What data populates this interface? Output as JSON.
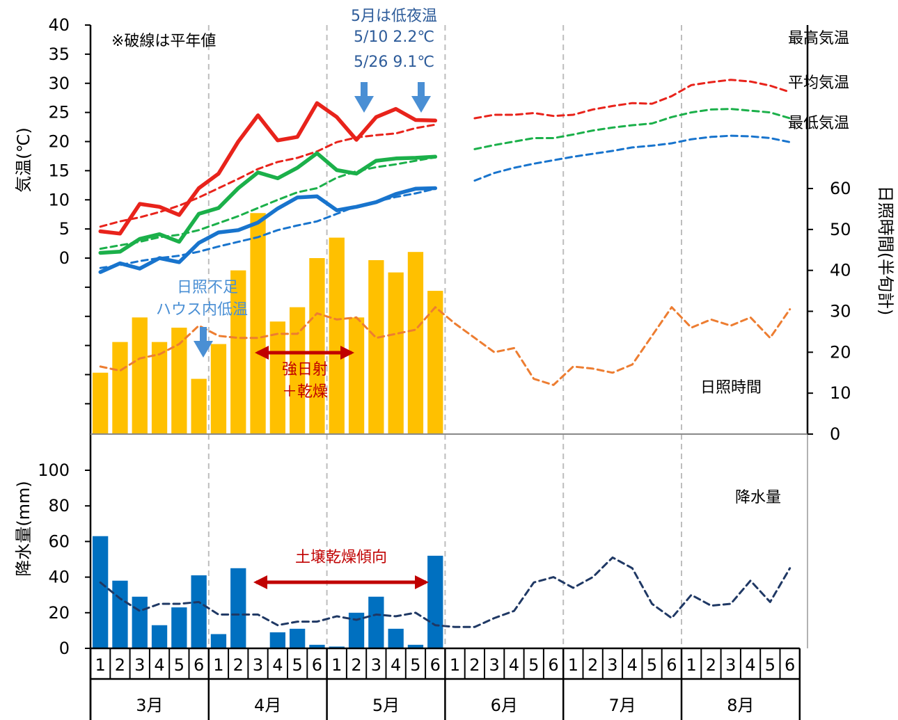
{
  "chart_data": [
    {
      "type": "line",
      "panel": "temperature",
      "ylabel": "気温(℃)",
      "ylim": [
        0,
        40
      ],
      "y_ticks": [
        40,
        35,
        30,
        25,
        20,
        15,
        10,
        5,
        0
      ],
      "x_periods": 36,
      "series": [
        {
          "name": "最高気温",
          "color": "#e8231b",
          "style": "solid",
          "values": [
            4.6,
            4.2,
            9.3,
            8.8,
            7.4,
            12.0,
            14.5,
            20.0,
            24.5,
            20.2,
            20.8,
            26.6,
            24.2,
            20.3,
            24.2,
            25.6,
            23.7,
            23.6
          ]
        },
        {
          "name": "最高気温(平年値)",
          "color": "#e8231b",
          "style": "dashed",
          "values": [
            5.4,
            6.3,
            7.0,
            7.9,
            9.0,
            10.4,
            12.0,
            13.6,
            15.3,
            16.5,
            17.2,
            18.3,
            19.9,
            20.7,
            21.1,
            21.4,
            22.3,
            22.9,
            null,
            24.0,
            24.6,
            24.6,
            24.9,
            24.4,
            24.6,
            25.5,
            26.1,
            26.6,
            26.5,
            27.8,
            29.7,
            30.2,
            30.6,
            30.3,
            29.6,
            28.5
          ]
        },
        {
          "name": "平均気温",
          "color": "#1bb04a",
          "style": "solid",
          "values": [
            0.9,
            1.1,
            3.3,
            4.1,
            2.8,
            7.6,
            8.6,
            12.0,
            14.7,
            13.7,
            15.5,
            18.0,
            15.1,
            14.5,
            16.7,
            17.1,
            17.2,
            17.4
          ]
        },
        {
          "name": "平均気温(平年値)",
          "color": "#1bb04a",
          "style": "dashed",
          "values": [
            1.6,
            2.2,
            2.8,
            3.6,
            4.0,
            4.8,
            6.0,
            7.2,
            8.6,
            10.0,
            11.3,
            12.0,
            13.8,
            14.9,
            15.6,
            16.1,
            16.7,
            17.3,
            null,
            18.7,
            19.4,
            20.0,
            20.6,
            20.6,
            21.2,
            21.9,
            22.4,
            22.8,
            23.1,
            24.2,
            25.0,
            25.5,
            25.6,
            25.3,
            25.0,
            24.0
          ]
        },
        {
          "name": "最低気温",
          "color": "#1874cd",
          "style": "solid",
          "values": [
            -2.4,
            -0.9,
            -1.8,
            0.0,
            -0.7,
            2.6,
            4.4,
            4.8,
            6.1,
            8.5,
            10.4,
            10.6,
            8.2,
            8.8,
            9.6,
            11.0,
            11.9,
            12.0
          ]
        },
        {
          "name": "最低気温(平年値)",
          "color": "#1874cd",
          "style": "dashed",
          "values": [
            -1.7,
            -1.2,
            -0.5,
            0.0,
            0.4,
            1.1,
            2.0,
            2.8,
            3.6,
            4.8,
            5.6,
            6.3,
            7.6,
            8.9,
            9.7,
            10.5,
            11.1,
            11.9,
            null,
            13.3,
            14.6,
            15.5,
            16.2,
            16.8,
            17.4,
            17.9,
            18.4,
            19.0,
            19.3,
            19.7,
            20.4,
            20.8,
            21.0,
            20.9,
            20.6,
            19.9
          ]
        }
      ]
    },
    {
      "type": "bar",
      "panel": "sunshine",
      "ylabel": "日照時間(半旬計)",
      "ylim": [
        0,
        60
      ],
      "y_ticks": [
        60,
        50,
        40,
        30,
        20,
        10,
        0
      ],
      "x_periods": 36,
      "series": [
        {
          "name": "日照時間",
          "color": "#ffc000",
          "style": "bar",
          "values": [
            15,
            22.5,
            28.5,
            22.5,
            26,
            13.5,
            22,
            40,
            54,
            27.5,
            31,
            43,
            48,
            28.5,
            42.5,
            39.5,
            44.5,
            35
          ]
        },
        {
          "name": "日照時間(平年値)",
          "color": "#ed7d31",
          "style": "dashed",
          "values": [
            16.5,
            15.5,
            18.5,
            19.5,
            22,
            26.5,
            24,
            23.5,
            23.5,
            24.5,
            24.5,
            29.5,
            28,
            28.5,
            23.5,
            24.5,
            25.5,
            31,
            27,
            23.5,
            20,
            21,
            13.5,
            12,
            16.5,
            16,
            15,
            17,
            24,
            31,
            26,
            28,
            26.5,
            28.5,
            23.5,
            30.5
          ]
        }
      ]
    },
    {
      "type": "bar",
      "panel": "precipitation",
      "ylabel": "降水量(mm)",
      "ylim": [
        0,
        100
      ],
      "y_ticks": [
        100,
        80,
        60,
        40,
        20,
        0
      ],
      "x_periods": 36,
      "series": [
        {
          "name": "降水量",
          "color": "#0070c0",
          "style": "bar",
          "values": [
            63,
            38,
            29,
            13,
            23,
            41,
            8,
            45,
            0,
            9,
            11,
            2,
            1,
            20,
            29,
            11,
            2,
            52
          ]
        },
        {
          "name": "降水量(平年値)",
          "color": "#1f3864",
          "style": "dashed",
          "values": [
            37,
            28,
            21,
            25,
            25,
            26,
            19,
            19,
            19,
            13,
            15,
            15,
            18,
            16,
            19,
            18,
            20,
            13,
            12,
            12,
            17,
            21,
            37,
            40,
            34,
            40,
            51,
            45,
            25,
            17,
            30,
            24,
            25,
            38,
            26,
            45
          ]
        }
      ]
    }
  ],
  "labels": {
    "note": "※破線は平年値",
    "legend_max": "最高気温",
    "legend_avg": "平均気温",
    "legend_min": "最低気温",
    "sunshine_label": "日照時間",
    "precip_label": "降水量",
    "low_night_title": "5月は低夜温",
    "low_night_1": "5/10 2.2℃",
    "low_night_2": "5/26 9.1℃",
    "shortage_1": "日照不足",
    "shortage_2": "ハウス内低温",
    "strong_sun_1": "強日射",
    "strong_sun_2": "＋乾燥",
    "soil_dry": "土壌乾燥傾向"
  },
  "x_axis": {
    "periods": [
      "1",
      "2",
      "3",
      "4",
      "5",
      "6"
    ],
    "months": [
      "3月",
      "4月",
      "5月",
      "6月",
      "7月",
      "8月"
    ]
  },
  "colors": {
    "annotation_blue": "#4a8fd4",
    "annotation_red": "#c00000",
    "note_text": "#2e5c9a"
  }
}
